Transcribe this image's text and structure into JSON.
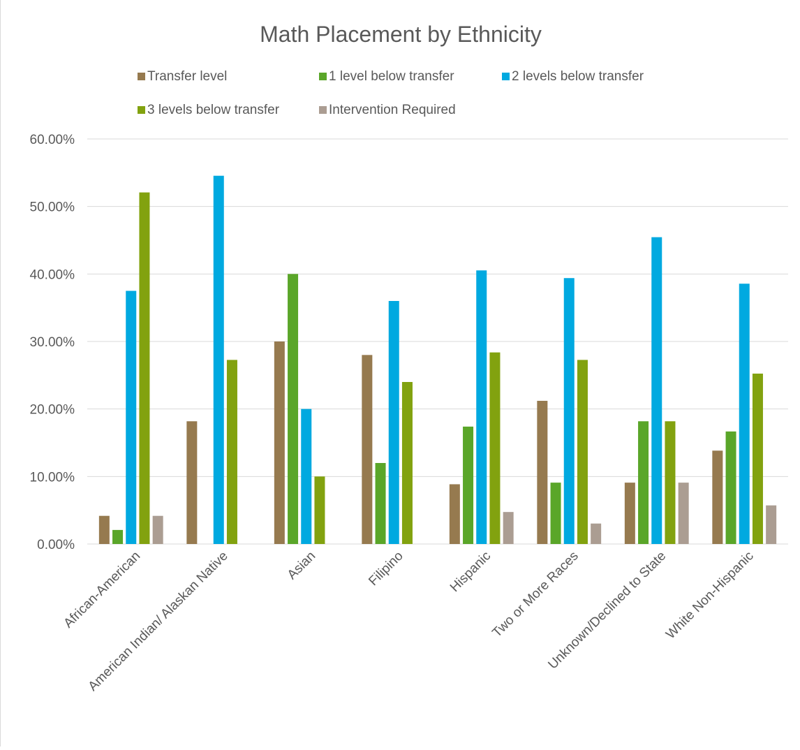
{
  "chart_data": {
    "type": "bar",
    "title": "Math Placement by Ethnicity",
    "xlabel": "",
    "ylabel": "",
    "ylim": [
      0,
      60
    ],
    "yticks": [
      "0.00%",
      "10.00%",
      "20.00%",
      "30.00%",
      "40.00%",
      "50.00%",
      "60.00%"
    ],
    "grid": true,
    "legend_position": "top",
    "categories": [
      "African-American",
      "American Indian/ Alaskan Native",
      "Asian",
      "Filipino",
      "Hispanic",
      "Two or More Races",
      "Unknown/Declined to State",
      "White Non-Hispanic"
    ],
    "series": [
      {
        "name": "Transfer level",
        "color": "#967a4f",
        "values": [
          4.17,
          18.18,
          30.0,
          28.0,
          8.85,
          21.21,
          9.09,
          13.83
        ]
      },
      {
        "name": "1 level below transfer",
        "color": "#5aa629",
        "values": [
          2.08,
          0,
          40.0,
          12.0,
          17.39,
          9.09,
          18.18,
          16.67
        ]
      },
      {
        "name": "2 levels below transfer",
        "color": "#00a9e0",
        "values": [
          37.5,
          54.55,
          20.0,
          36.0,
          40.53,
          39.39,
          45.45,
          38.56
        ]
      },
      {
        "name": "3 levels below transfer",
        "color": "#82a20f",
        "values": [
          52.08,
          27.27,
          10.0,
          24.0,
          28.38,
          27.27,
          18.18,
          25.24
        ]
      },
      {
        "name": "Intervention Required",
        "color": "#ab9d92",
        "values": [
          4.17,
          0,
          0,
          0,
          4.74,
          3.03,
          9.09,
          5.72
        ]
      }
    ]
  }
}
